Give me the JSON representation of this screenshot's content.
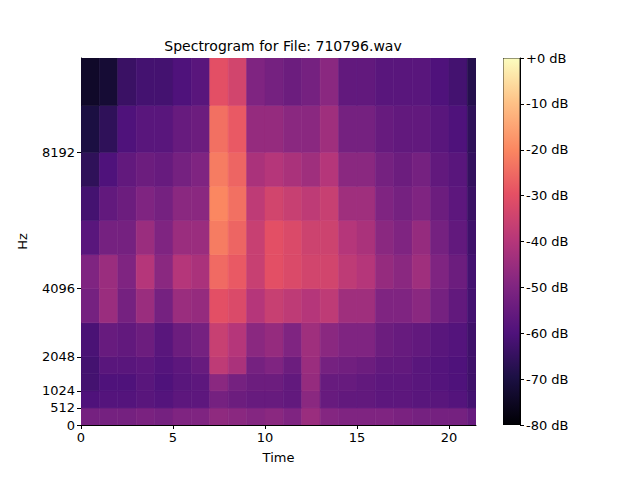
{
  "chart_data": {
    "type": "heatmap",
    "title": "Spectrogram for File: 710796.wav",
    "x_label": "Time",
    "y_label": "Hz",
    "xlim": [
      0,
      21.47
    ],
    "xticks": [
      0,
      5,
      10,
      15,
      20
    ],
    "ylim": [
      0,
      11025
    ],
    "yticks": [
      0,
      512,
      1024,
      2048,
      4096,
      8192
    ],
    "grid": false,
    "x_bins": [
      0,
      1,
      2,
      3,
      4,
      5,
      6,
      7,
      8,
      9,
      10,
      11,
      12,
      13,
      14,
      15,
      16,
      17,
      18,
      19,
      20,
      21,
      21.47
    ],
    "y_bins": [
      0,
      512,
      1024,
      1536,
      2048,
      3072,
      4096,
      5120,
      6144,
      7168,
      8192,
      9600,
      11025
    ],
    "cells": [
      [
        -52,
        -52,
        -52,
        -51,
        -52,
        -50,
        -50,
        -47,
        -48,
        -49,
        -48,
        -50,
        -45,
        -49,
        -50,
        -50,
        -50,
        -51,
        -52,
        -52,
        -52,
        -55
      ],
      [
        -60,
        -59,
        -59,
        -58,
        -59,
        -57,
        -57,
        -52,
        -54,
        -55,
        -55,
        -56,
        -48,
        -55,
        -56,
        -56,
        -57,
        -57,
        -58,
        -58,
        -59,
        -62
      ],
      [
        -62,
        -60,
        -60,
        -58,
        -60,
        -58,
        -57,
        -48,
        -52,
        -54,
        -54,
        -56,
        -46,
        -55,
        -55,
        -56,
        -57,
        -57,
        -58,
        -59,
        -60,
        -63
      ],
      [
        -62,
        -58,
        -58,
        -57,
        -59,
        -57,
        -55,
        -38,
        -42,
        -52,
        -50,
        -54,
        -45,
        -52,
        -53,
        -54,
        -56,
        -56,
        -58,
        -59,
        -60,
        -63
      ],
      [
        -61,
        -55,
        -56,
        -54,
        -58,
        -54,
        -52,
        -36,
        -40,
        -48,
        -46,
        -50,
        -44,
        -48,
        -50,
        -50,
        -54,
        -55,
        -56,
        -58,
        -59,
        -63
      ],
      [
        -52,
        -45,
        -52,
        -45,
        -52,
        -45,
        -46,
        -30,
        -32,
        -40,
        -36,
        -38,
        -40,
        -38,
        -44,
        -44,
        -50,
        -50,
        -48,
        -52,
        -56,
        -62
      ],
      [
        -50,
        -45,
        -50,
        -40,
        -48,
        -40,
        -42,
        -25,
        -28,
        -36,
        -30,
        -32,
        -34,
        -34,
        -38,
        -40,
        -46,
        -48,
        -44,
        -50,
        -54,
        -62
      ],
      [
        -58,
        -52,
        -52,
        -45,
        -50,
        -45,
        -45,
        -22,
        -26,
        -36,
        -30,
        -32,
        -35,
        -35,
        -40,
        -42,
        -48,
        -50,
        -46,
        -52,
        -56,
        -63
      ],
      [
        -62,
        -56,
        -54,
        -50,
        -52,
        -48,
        -48,
        -20,
        -24,
        -38,
        -34,
        -36,
        -38,
        -36,
        -44,
        -44,
        -50,
        -52,
        -50,
        -54,
        -57,
        -64
      ],
      [
        -66,
        -60,
        -56,
        -54,
        -55,
        -52,
        -50,
        -22,
        -26,
        -42,
        -40,
        -42,
        -44,
        -40,
        -48,
        -48,
        -52,
        -54,
        -52,
        -56,
        -58,
        -65
      ],
      [
        -70,
        -66,
        -60,
        -58,
        -58,
        -55,
        -54,
        -24,
        -28,
        -46,
        -46,
        -48,
        -48,
        -44,
        -52,
        -52,
        -55,
        -56,
        -56,
        -58,
        -60,
        -66
      ],
      [
        -74,
        -72,
        -64,
        -62,
        -62,
        -60,
        -58,
        -30,
        -34,
        -50,
        -52,
        -54,
        -52,
        -48,
        -56,
        -56,
        -58,
        -58,
        -58,
        -60,
        -62,
        -68
      ]
    ],
    "colorbar": {
      "range": [
        -80,
        0
      ],
      "ticks": [
        {
          "value": 0,
          "label": "+0 dB"
        },
        {
          "value": -10,
          "label": "-10 dB"
        },
        {
          "value": -20,
          "label": "-20 dB"
        },
        {
          "value": -30,
          "label": "-30 dB"
        },
        {
          "value": -40,
          "label": "-40 dB"
        },
        {
          "value": -50,
          "label": "-50 dB"
        },
        {
          "value": -60,
          "label": "-60 dB"
        },
        {
          "value": -70,
          "label": "-70 dB"
        },
        {
          "value": -80,
          "label": "-80 dB"
        }
      ]
    }
  }
}
